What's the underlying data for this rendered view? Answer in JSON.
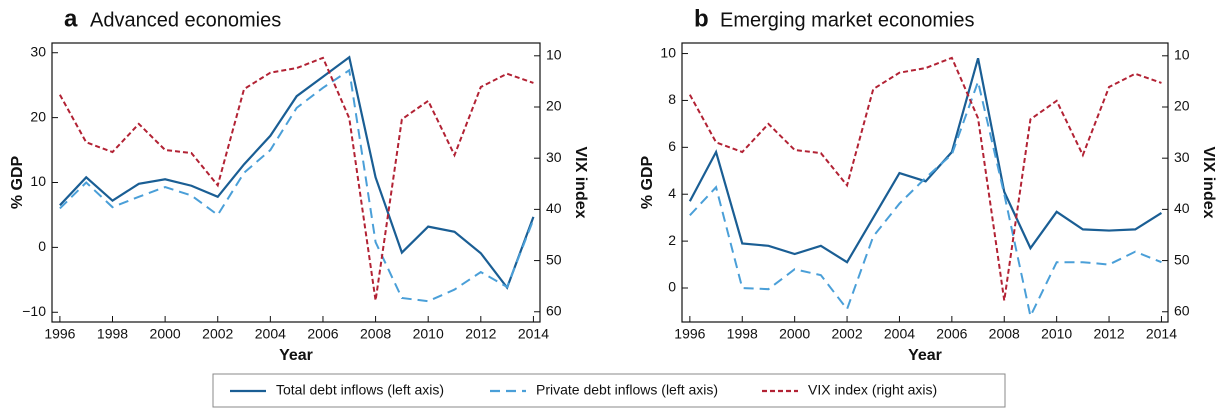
{
  "chart_data": [
    {
      "type": "line",
      "panel_label": "a",
      "title": "Advanced economies",
      "x_label": "Year",
      "y_label": "% GDP",
      "y2_label": "VIX index",
      "x": [
        1996,
        1997,
        1998,
        1999,
        2000,
        2001,
        2002,
        2003,
        2004,
        2005,
        2006,
        2007,
        2008,
        2009,
        2010,
        2011,
        2012,
        2013,
        2014
      ],
      "xlim": [
        1995.7,
        2014.25
      ],
      "xticks": [
        1996,
        1998,
        2000,
        2002,
        2004,
        2006,
        2008,
        2010,
        2012,
        2014
      ],
      "ylim": [
        -11.5,
        31.5
      ],
      "yticks": [
        {
          "value": -10,
          "label": "−10"
        },
        0,
        10,
        20,
        30
      ],
      "y2lim": [
        62,
        7.5
      ],
      "y2ticks": [
        10,
        20,
        30,
        40,
        50,
        60
      ],
      "series": [
        {
          "name": "Total debt inflows (left axis)",
          "color": "#1a5e94",
          "linestyle": "solid",
          "values": [
            6.5,
            10.8,
            7.2,
            9.8,
            10.5,
            9.5,
            7.8,
            12.8,
            17.2,
            23.3,
            26.3,
            29.3,
            10.8,
            -0.8,
            3.2,
            2.4,
            -0.9,
            -6.2,
            4.7
          ]
        },
        {
          "name": "Private debt inflows (left axis)",
          "color": "#4a9fd8",
          "linestyle": "dashed",
          "values": [
            6.0,
            10.0,
            6.2,
            7.8,
            9.3,
            8.0,
            5.0,
            11.5,
            15.0,
            21.5,
            24.6,
            27.3,
            0.8,
            -7.8,
            -8.3,
            -6.5,
            -3.8,
            -6.1,
            4.3
          ]
        },
        {
          "name": "VIX index (right axis)",
          "color": "#b22234",
          "linestyle": "dotted",
          "axis": "y2",
          "values": [
            17.6,
            26.9,
            28.8,
            23.3,
            28.4,
            29.0,
            35.3,
            16.5,
            13.3,
            12.4,
            10.4,
            22.2,
            57.8,
            22.4,
            18.8,
            29.4,
            16.1,
            13.5,
            15.3
          ]
        }
      ],
      "legend": "bottom"
    },
    {
      "type": "line",
      "panel_label": "b",
      "title": "Emerging market economies",
      "x_label": "Year",
      "y_label": "% GDP",
      "y2_label": "VIX index",
      "x": [
        1996,
        1997,
        1998,
        1999,
        2000,
        2001,
        2002,
        2003,
        2004,
        2005,
        2006,
        2007,
        2008,
        2009,
        2010,
        2011,
        2012,
        2013,
        2014
      ],
      "xlim": [
        1995.7,
        2014.25
      ],
      "xticks": [
        1996,
        1998,
        2000,
        2002,
        2004,
        2006,
        2008,
        2010,
        2012,
        2014
      ],
      "ylim": [
        -1.45,
        10.45
      ],
      "yticks": [
        0,
        2,
        4,
        6,
        8,
        10
      ],
      "y2lim": [
        62,
        7.5
      ],
      "y2ticks": [
        10,
        20,
        30,
        40,
        50,
        60
      ],
      "series": [
        {
          "name": "Total debt inflows (left axis)",
          "color": "#1a5e94",
          "linestyle": "solid",
          "values": [
            3.7,
            5.8,
            1.9,
            1.8,
            1.45,
            1.8,
            1.1,
            3.0,
            4.9,
            4.55,
            5.8,
            9.8,
            4.1,
            1.7,
            3.25,
            2.5,
            2.45,
            2.5,
            3.2
          ]
        },
        {
          "name": "Private debt inflows (left axis)",
          "color": "#4a9fd8",
          "linestyle": "dashed",
          "values": [
            3.1,
            4.3,
            0.0,
            -0.05,
            0.8,
            0.55,
            -0.9,
            2.2,
            3.6,
            4.7,
            5.7,
            8.8,
            4.0,
            -1.2,
            1.1,
            1.1,
            1.0,
            1.55,
            1.1
          ]
        },
        {
          "name": "VIX index (right axis)",
          "color": "#b22234",
          "linestyle": "dotted",
          "axis": "y2",
          "values": [
            17.6,
            26.9,
            28.8,
            23.3,
            28.4,
            29.0,
            35.3,
            16.5,
            13.3,
            12.4,
            10.4,
            22.2,
            57.8,
            22.4,
            18.8,
            29.4,
            16.1,
            13.5,
            15.3
          ]
        }
      ]
    }
  ]
}
